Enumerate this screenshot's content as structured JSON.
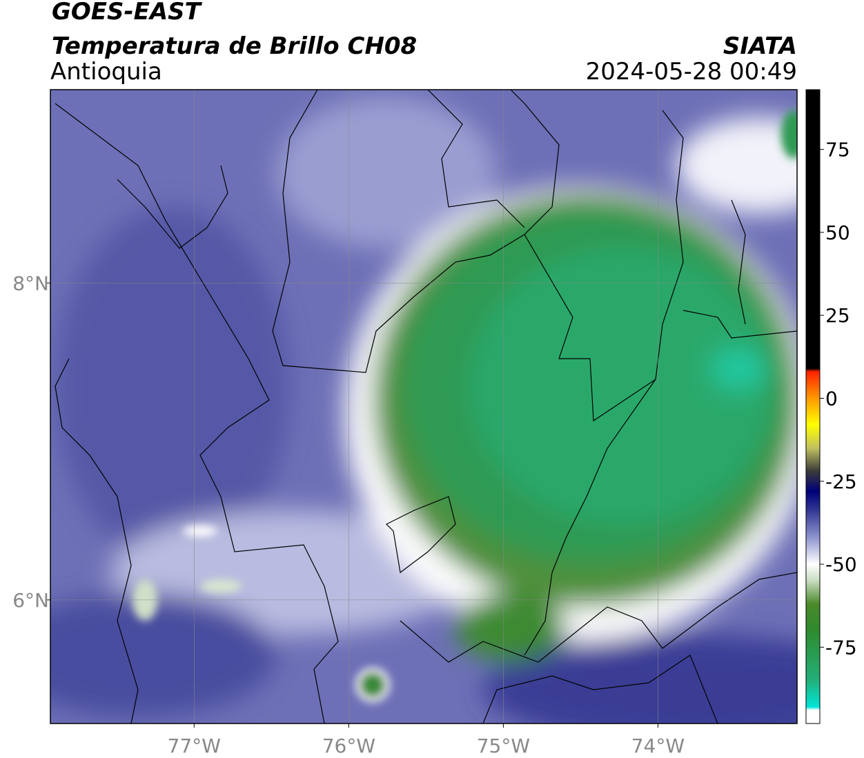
{
  "header": {
    "satellite": "GOES-EAST",
    "title": "Temperatura de Brillo CH08",
    "region": "Antioquia",
    "source": "SIATA",
    "datetime": "2024-05-28 00:49"
  },
  "map": {
    "xlim": [
      -77.93,
      -73.1
    ],
    "ylim": [
      5.22,
      9.22
    ],
    "xticks": [
      {
        "value": -77,
        "label": "77°W"
      },
      {
        "value": -76,
        "label": "76°W"
      },
      {
        "value": -75,
        "label": "75°W"
      },
      {
        "value": -74,
        "label": "74°W"
      }
    ],
    "yticks": [
      {
        "value": 8,
        "label": "8°N"
      },
      {
        "value": 6,
        "label": "6°N"
      }
    ],
    "grid": true
  },
  "colorbar": {
    "lim": [
      -98,
      93
    ],
    "ticks": [
      75,
      50,
      25,
      0,
      -25,
      -50,
      -75
    ],
    "stops": [
      {
        "value": -98,
        "color": "#ffffff"
      },
      {
        "value": -94,
        "color": "#ffffff"
      },
      {
        "value": -93,
        "color": "#00e5d8"
      },
      {
        "value": -85,
        "color": "#22b07a"
      },
      {
        "value": -70,
        "color": "#2e8b2e"
      },
      {
        "value": -62,
        "color": "#4a8a2a"
      },
      {
        "value": -55,
        "color": "#c8dcc0"
      },
      {
        "value": -50,
        "color": "#ffffff"
      },
      {
        "value": -42,
        "color": "#8f95cf"
      },
      {
        "value": -33,
        "color": "#2a2f8f"
      },
      {
        "value": -28,
        "color": "#00007a"
      },
      {
        "value": -22,
        "color": "#3a3a3a"
      },
      {
        "value": -15,
        "color": "#c0c060"
      },
      {
        "value": -8,
        "color": "#ffff00"
      },
      {
        "value": 0,
        "color": "#ff9900"
      },
      {
        "value": 8,
        "color": "#ff2200"
      },
      {
        "value": 9,
        "color": "#000000"
      },
      {
        "value": 93,
        "color": "#000000"
      }
    ]
  }
}
